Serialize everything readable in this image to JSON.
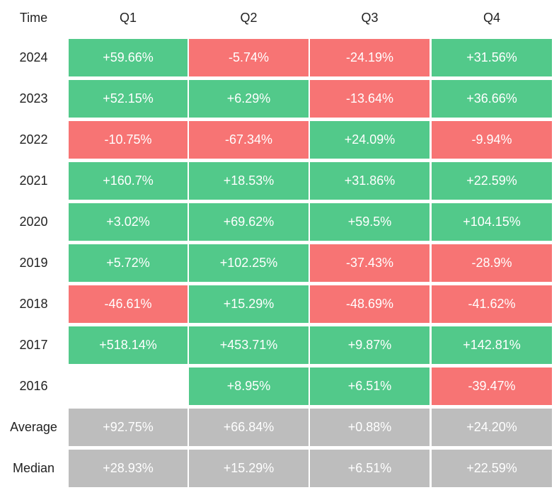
{
  "table": {
    "header": [
      "Time",
      "Q1",
      "Q2",
      "Q3",
      "Q4"
    ],
    "rows": [
      [
        "2024",
        "+59.66%",
        "-5.74%",
        "-24.19%",
        "+31.56%"
      ],
      [
        "2023",
        "+52.15%",
        "+6.29%",
        "-13.64%",
        "+36.66%"
      ],
      [
        "2022",
        "-10.75%",
        "-67.34%",
        "+24.09%",
        "-9.94%"
      ],
      [
        "2021",
        "+160.7%",
        "+18.53%",
        "+31.86%",
        "+22.59%"
      ],
      [
        "2020",
        "+3.02%",
        "+69.62%",
        "+59.5%",
        "+104.15%"
      ],
      [
        "2019",
        "+5.72%",
        "+102.25%",
        "-37.43%",
        "-28.9%"
      ],
      [
        "2018",
        "-46.61%",
        "+15.29%",
        "-48.69%",
        "-41.62%"
      ],
      [
        "2017",
        "+518.14%",
        "+453.71%",
        "+9.87%",
        "+142.81%"
      ],
      [
        "2016",
        null,
        "+8.95%",
        "+6.51%",
        "-39.47%"
      ]
    ],
    "summary_rows": [
      [
        "Average",
        "+92.75%",
        "+66.84%",
        "+0.88%",
        "+24.20%"
      ],
      [
        "Median",
        "+28.93%",
        "+15.29%",
        "+6.51%",
        "+22.59%"
      ]
    ],
    "colors": {
      "up": "#52c98a",
      "down": "#f77474",
      "summary": "#bdbdbd"
    }
  }
}
